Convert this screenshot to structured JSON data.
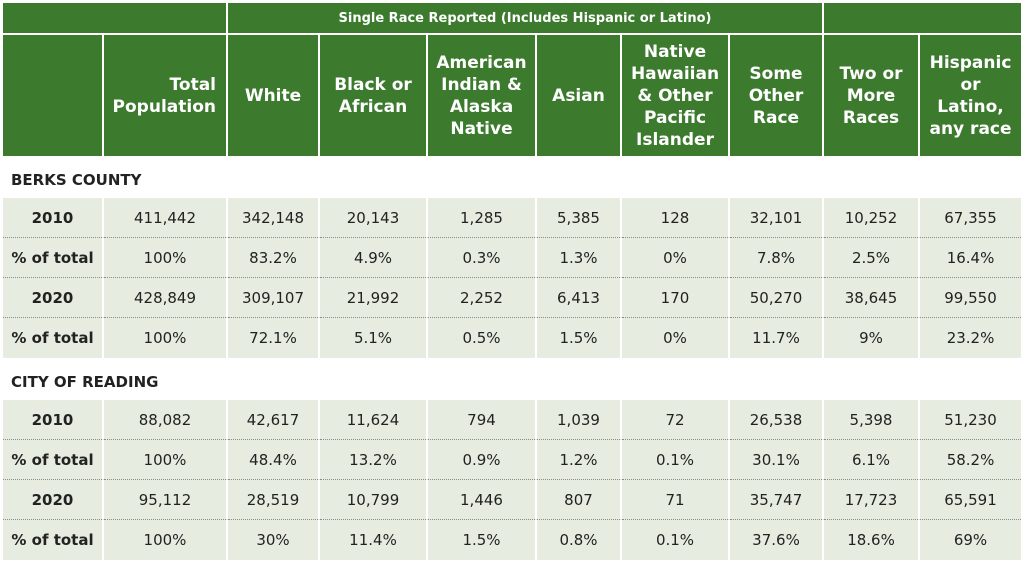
{
  "super_header": "Single Race Reported (Includes Hispanic or Latino)",
  "headers": {
    "total": [
      "Total",
      "Population"
    ],
    "white": [
      "White"
    ],
    "black": [
      "Black or",
      "African"
    ],
    "amind": [
      "American",
      "Indian &",
      "Alaska",
      "Native"
    ],
    "asian": [
      "Asian"
    ],
    "nhpi": [
      "Native",
      "Hawaiian",
      "& Other",
      "Pacific",
      "Islander"
    ],
    "other": [
      "Some",
      "Other",
      "Race"
    ],
    "two": [
      "Two or",
      "More",
      "Races"
    ],
    "hisp": [
      "Hispanic",
      "or",
      "Latino,",
      "any race"
    ]
  },
  "sections": [
    {
      "title": "BERKS COUNTY",
      "rows": [
        {
          "label": "2010",
          "values": [
            "411,442",
            "342,148",
            "20,143",
            "1,285",
            "5,385",
            "128",
            "32,101",
            "10,252",
            "67,355"
          ]
        },
        {
          "label": "% of total",
          "values": [
            "100%",
            "83.2%",
            "4.9%",
            "0.3%",
            "1.3%",
            "0%",
            "7.8%",
            "2.5%",
            "16.4%"
          ]
        },
        {
          "label": "2020",
          "values": [
            "428,849",
            "309,107",
            "21,992",
            "2,252",
            "6,413",
            "170",
            "50,270",
            "38,645",
            "99,550"
          ]
        },
        {
          "label": "% of total",
          "values": [
            "100%",
            "72.1%",
            "5.1%",
            "0.5%",
            "1.5%",
            "0%",
            "11.7%",
            "9%",
            "23.2%"
          ]
        }
      ]
    },
    {
      "title": "CITY OF READING",
      "rows": [
        {
          "label": "2010",
          "values": [
            "88,082",
            "42,617",
            "11,624",
            "794",
            "1,039",
            "72",
            "26,538",
            "5,398",
            "51,230"
          ]
        },
        {
          "label": "% of total",
          "values": [
            "100%",
            "48.4%",
            "13.2%",
            "0.9%",
            "1.2%",
            "0.1%",
            "30.1%",
            "6.1%",
            "58.2%"
          ]
        },
        {
          "label": "2020",
          "values": [
            "95,112",
            "28,519",
            "10,799",
            "1,446",
            "807",
            "71",
            "35,747",
            "17,723",
            "65,591"
          ]
        },
        {
          "label": "% of total",
          "values": [
            "100%",
            "30%",
            "11.4%",
            "1.5%",
            "0.8%",
            "0.1%",
            "37.6%",
            "18.6%",
            "69%"
          ]
        }
      ]
    }
  ]
}
